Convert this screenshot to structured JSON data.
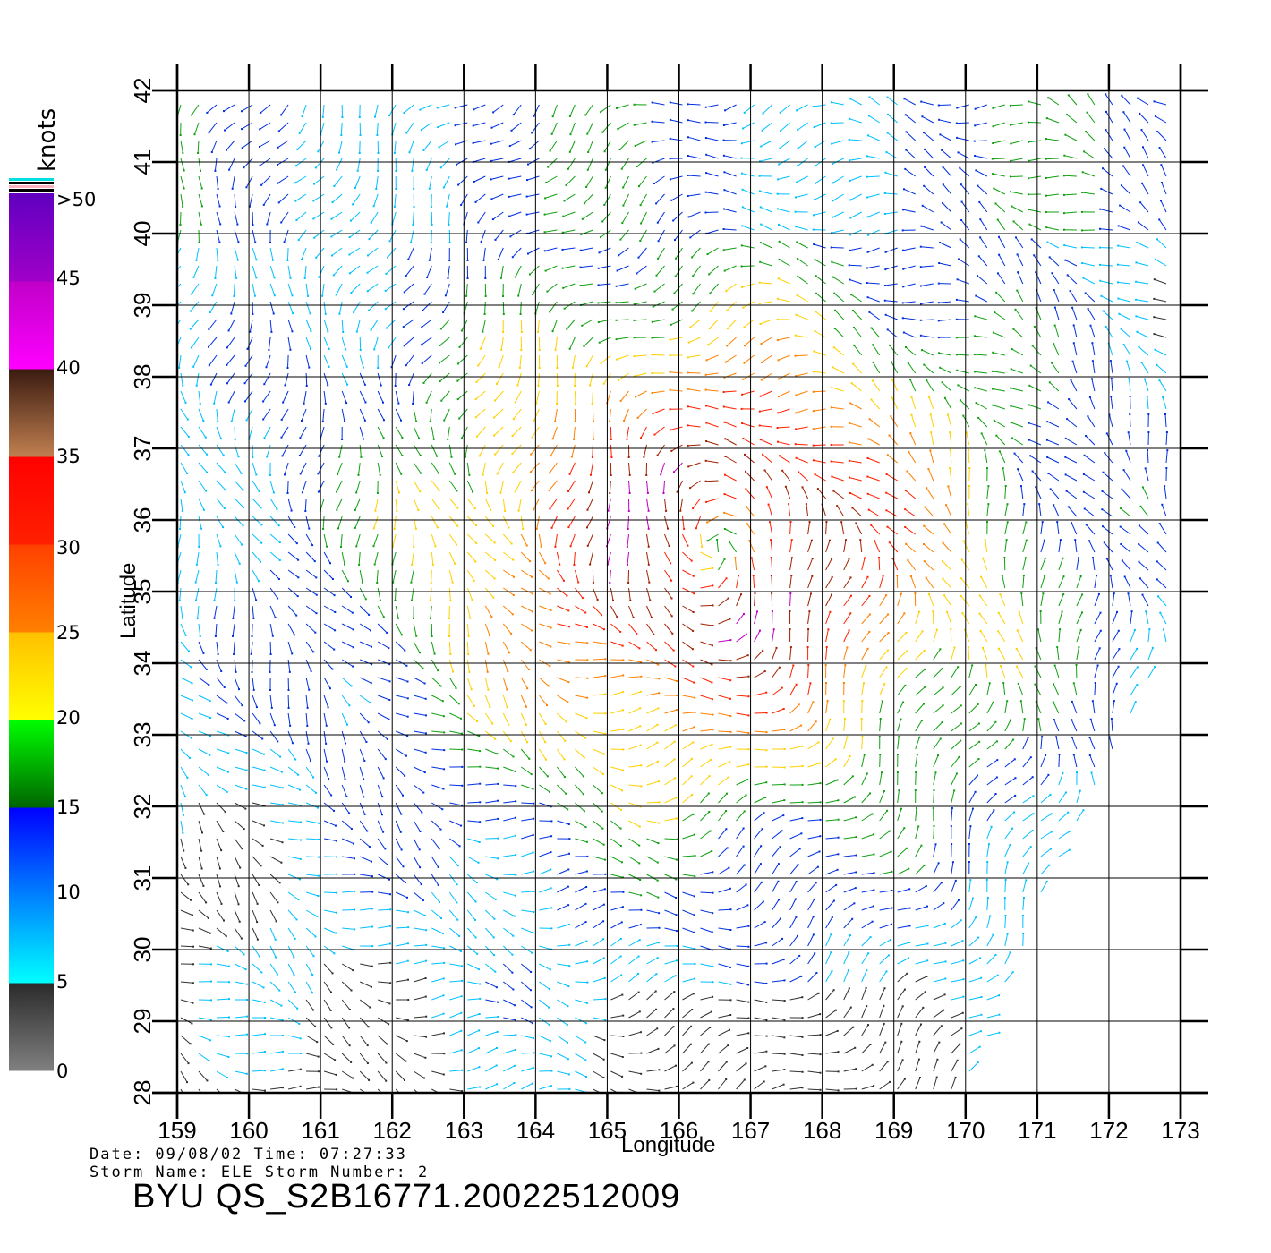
{
  "chart_data": {
    "type": "wind-vector-field",
    "xlabel": "Longitude",
    "ylabel": "Latitude",
    "xlim": [
      159,
      173
    ],
    "ylim": [
      28,
      42
    ],
    "x_ticks": [
      "159",
      "160",
      "161",
      "162",
      "163",
      "164",
      "165",
      "166",
      "167",
      "168",
      "169",
      "170",
      "171",
      "172",
      "173"
    ],
    "y_ticks": [
      "28",
      "29",
      "30",
      "31",
      "32",
      "33",
      "34",
      "35",
      "36",
      "37",
      "38",
      "39",
      "40",
      "41",
      "42"
    ],
    "grid": true,
    "colorbar": {
      "units": "knots",
      "position": "left",
      "labels": [
        "0",
        "5",
        "10",
        "15",
        "20",
        "25",
        "30",
        "35",
        "40",
        "45",
        ">50"
      ],
      "bands": [
        {
          "range": [
            0,
            5
          ],
          "colors": [
            "#808080",
            "#2a2a2a"
          ]
        },
        {
          "range": [
            5,
            10
          ],
          "colors": [
            "#00ffff",
            "#0080ff"
          ]
        },
        {
          "range": [
            10,
            15
          ],
          "colors": [
            "#0080ff",
            "#0000ff"
          ]
        },
        {
          "range": [
            15,
            20
          ],
          "colors": [
            "#006400",
            "#00ff00"
          ]
        },
        {
          "range": [
            20,
            25
          ],
          "colors": [
            "#ffff00",
            "#ffc000"
          ]
        },
        {
          "range": [
            25,
            30
          ],
          "colors": [
            "#ff8000",
            "#ff4000"
          ]
        },
        {
          "range": [
            30,
            35
          ],
          "colors": [
            "#ff2000",
            "#ff0000"
          ]
        },
        {
          "range": [
            35,
            40
          ],
          "colors": [
            "#c08050",
            "#3a1a10"
          ]
        },
        {
          "range": [
            40,
            45
          ],
          "colors": [
            "#ff00ff",
            "#c000c8"
          ]
        },
        {
          "range": [
            45,
            50
          ],
          "colors": [
            "#a000c8",
            "#6000c0"
          ]
        }
      ]
    },
    "storm_center": {
      "lon": 166.5,
      "lat": 35.6
    },
    "swath_edge": [
      [
        173,
        34.6
      ],
      [
        172.2,
        33.0
      ],
      [
        171.0,
        30.5
      ],
      [
        170.0,
        28.0
      ]
    ]
  },
  "info": {
    "date_line": "Date: 09/08/02   Time: 07:27:33",
    "storm_line": "Storm  Name:  ELE    Storm  Number:  2",
    "product_title": "BYU  QS_S2B16771.20022512009"
  }
}
